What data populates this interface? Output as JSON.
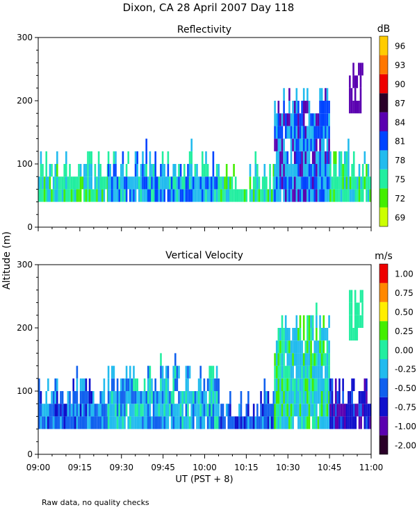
{
  "figure": {
    "title": "Dixon, CA 28 April 2007  Day 118",
    "ylabel": "Altitude (m)",
    "xlabel": "UT  (PST + 8)",
    "footnote": "Raw data, no quality checks"
  },
  "chart_data": [
    {
      "type": "heatmap",
      "title": "Reflectivity",
      "x_ticks": [
        "09:00",
        "09:15",
        "09:30",
        "09:45",
        "10:00",
        "10:15",
        "10:30",
        "10:45",
        "11:00"
      ],
      "xlim_hours": [
        9.0,
        11.0
      ],
      "y_ticks": [
        0,
        100,
        200,
        300
      ],
      "ylim": [
        0,
        300
      ],
      "colorbar": {
        "unit": "dB",
        "levels": [
          "69",
          "72",
          "75",
          "78",
          "81",
          "84",
          "87",
          "90",
          "93",
          "96"
        ],
        "colors": [
          "#ccff00",
          "#44ee00",
          "#22eea0",
          "#22bbee",
          "#0044ff",
          "#5a00b0",
          "#2a0028",
          "#ee0000",
          "#ff7700",
          "#ffcc00"
        ]
      },
      "echo": {
        "base_m": 40,
        "segments": [
          {
            "t0": "09:00",
            "t1": "09:25",
            "top_m": 120,
            "dominant": [
              "75",
              "78",
              "72"
            ]
          },
          {
            "t0": "09:25",
            "t1": "10:05",
            "top_m": 120,
            "dominant": [
              "78",
              "81",
              "75"
            ]
          },
          {
            "t0": "10:05",
            "t1": "10:25",
            "top_m": 100,
            "dominant": [
              "75",
              "72",
              "78"
            ]
          },
          {
            "t0": "10:25",
            "t1": "10:45",
            "top_m": 220,
            "dominant": [
              "78",
              "81",
              "84"
            ]
          },
          {
            "t0": "10:45",
            "t1": "11:00",
            "top_m": 120,
            "dominant": [
              "75",
              "78",
              "72"
            ]
          }
        ],
        "plumes": [
          {
            "t0": "10:52",
            "t1": "10:57",
            "bottom_m": 180,
            "top_m": 260,
            "dominant": "84"
          }
        ]
      }
    },
    {
      "type": "heatmap",
      "title": "Vertical Velocity",
      "x_ticks": [
        "09:00",
        "09:15",
        "09:30",
        "09:45",
        "10:00",
        "10:15",
        "10:30",
        "10:45",
        "11:00"
      ],
      "xlim_hours": [
        9.0,
        11.0
      ],
      "y_ticks": [
        0,
        100,
        200,
        300
      ],
      "ylim": [
        0,
        300
      ],
      "colorbar": {
        "unit": "m/s",
        "levels": [
          "-2.00",
          "-1.00",
          "-0.75",
          "-0.50",
          "-0.25",
          "0.00",
          "0.25",
          "0.50",
          "0.75",
          "1.00"
        ],
        "colors": [
          "#2a0028",
          "#5a00b0",
          "#1010cc",
          "#1060ee",
          "#22bbee",
          "#22eea0",
          "#44ee00",
          "#ffee00",
          "#ff8800",
          "#ee0000"
        ]
      },
      "echo": {
        "base_m": 40,
        "segments": [
          {
            "t0": "09:00",
            "t1": "09:25",
            "top_m": 120,
            "dominant": [
              "-0.50",
              "-0.25",
              "-0.75"
            ]
          },
          {
            "t0": "09:25",
            "t1": "10:05",
            "top_m": 140,
            "dominant": [
              "-0.25",
              "-0.50",
              "0.00"
            ]
          },
          {
            "t0": "10:05",
            "t1": "10:25",
            "top_m": 100,
            "dominant": [
              "-0.50",
              "-0.75",
              "-0.25"
            ]
          },
          {
            "t0": "10:25",
            "t1": "10:45",
            "top_m": 220,
            "dominant": [
              "-0.25",
              "0.00",
              "0.25"
            ]
          },
          {
            "t0": "10:45",
            "t1": "11:00",
            "top_m": 120,
            "dominant": [
              "-0.75",
              "-1.00",
              "-0.50"
            ]
          }
        ],
        "plumes": [
          {
            "t0": "10:52",
            "t1": "10:57",
            "bottom_m": 180,
            "top_m": 260,
            "dominant": "0.00"
          }
        ]
      }
    }
  ]
}
